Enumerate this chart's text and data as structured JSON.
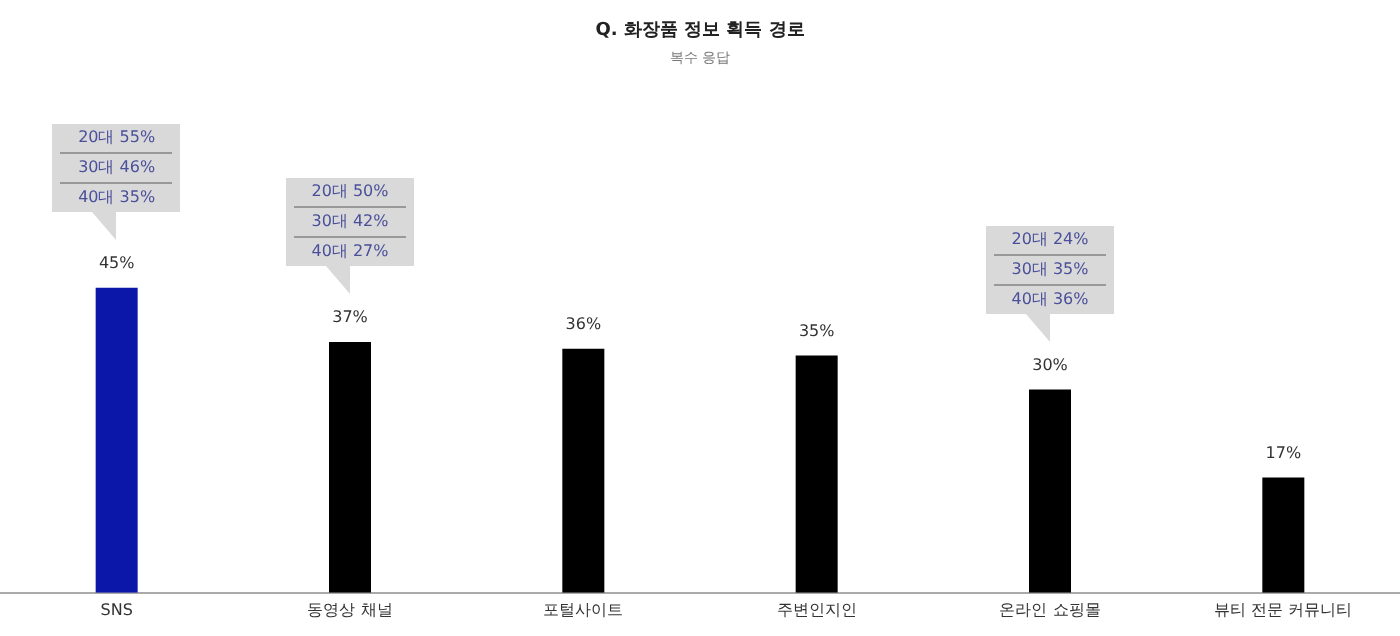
{
  "chart_data": {
    "type": "bar",
    "title": "Q. 화장품 정보 획득 경로",
    "subtitle": "복수 응답",
    "categories": [
      "SNS",
      "동영상 채널",
      "포털사이트",
      "주변인지인",
      "온라인 쇼핑몰",
      "뷰티 전문 커뮤니티"
    ],
    "values": [
      45,
      37,
      36,
      35,
      30,
      17
    ],
    "value_labels": [
      "45%",
      "37%",
      "36%",
      "35%",
      "30%",
      "17%"
    ],
    "colors": [
      "#0a17a8",
      "#000000",
      "#000000",
      "#000000",
      "#000000",
      "#000000"
    ],
    "tick_labels": "x",
    "annotations": [
      "20대 55%",
      "30대 46%",
      "40대 35%",
      "20대 50%",
      "30대 42%",
      "40대 27%",
      "20대 24%",
      "30대 35%",
      "40대 36%"
    ]
  }
}
